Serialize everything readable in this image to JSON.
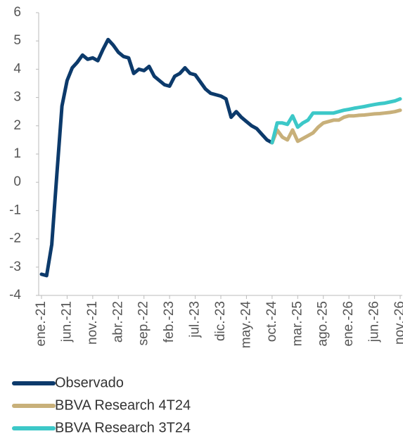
{
  "chart_data": {
    "type": "line",
    "categories": [
      "ene.-21",
      null,
      null,
      null,
      null,
      "jun.-21",
      null,
      null,
      null,
      null,
      "nov.-21",
      null,
      null,
      null,
      null,
      "abr.-22",
      null,
      null,
      null,
      null,
      "sep.-22",
      null,
      null,
      null,
      null,
      "feb.-23",
      null,
      null,
      null,
      null,
      "jul.-23",
      null,
      null,
      null,
      null,
      "dic.-23",
      null,
      null,
      null,
      null,
      "may.-24",
      null,
      null,
      null,
      null,
      "oct.-24",
      null,
      null,
      null,
      null,
      "mar.-25",
      null,
      null,
      null,
      null,
      "ago.-25",
      null,
      null,
      null,
      null,
      "ene.-26",
      null,
      null,
      null,
      null,
      "jun.-26",
      null,
      null,
      null,
      null,
      "nov.-26"
    ],
    "series": [
      {
        "name": "Observado",
        "color": "#0c3a6b",
        "values": [
          -3.25,
          -3.3,
          -2.2,
          0.3,
          2.7,
          3.6,
          4.05,
          4.25,
          4.5,
          4.35,
          4.4,
          4.3,
          4.7,
          5.05,
          4.85,
          4.6,
          4.45,
          4.4,
          3.85,
          4.0,
          3.95,
          4.1,
          3.75,
          3.6,
          3.45,
          3.4,
          3.75,
          3.85,
          4.05,
          3.85,
          3.8,
          3.55,
          3.3,
          3.15,
          3.1,
          3.05,
          2.95,
          2.3,
          2.5,
          2.3,
          2.15,
          2.0,
          1.9,
          1.7,
          1.5,
          1.4,
          null,
          null,
          null,
          null,
          null,
          null,
          null,
          null,
          null,
          null,
          null,
          null,
          null,
          null,
          null,
          null,
          null,
          null,
          null,
          null,
          null,
          null,
          null,
          null,
          null
        ]
      },
      {
        "name": "BBVA Research 4T24",
        "color": "#c8b07a",
        "values": [
          null,
          null,
          null,
          null,
          null,
          null,
          null,
          null,
          null,
          null,
          null,
          null,
          null,
          null,
          null,
          null,
          null,
          null,
          null,
          null,
          null,
          null,
          null,
          null,
          null,
          null,
          null,
          null,
          null,
          null,
          null,
          null,
          null,
          null,
          null,
          null,
          null,
          null,
          null,
          null,
          null,
          null,
          null,
          null,
          null,
          1.4,
          1.85,
          1.6,
          1.5,
          1.85,
          1.45,
          1.55,
          1.65,
          1.75,
          1.95,
          2.1,
          2.15,
          2.2,
          2.2,
          2.3,
          2.35,
          2.35,
          2.37,
          2.38,
          2.4,
          2.42,
          2.43,
          2.45,
          2.47,
          2.5,
          2.55
        ]
      },
      {
        "name": "BBVA Research 3T24",
        "color": "#3cc8c8",
        "values": [
          null,
          null,
          null,
          null,
          null,
          null,
          null,
          null,
          null,
          null,
          null,
          null,
          null,
          null,
          null,
          null,
          null,
          null,
          null,
          null,
          null,
          null,
          null,
          null,
          null,
          null,
          null,
          null,
          null,
          null,
          null,
          null,
          null,
          null,
          null,
          null,
          null,
          null,
          null,
          null,
          null,
          null,
          null,
          null,
          null,
          1.4,
          2.1,
          2.1,
          2.05,
          2.35,
          1.95,
          2.1,
          2.2,
          2.45,
          2.45,
          2.45,
          2.45,
          2.45,
          2.5,
          2.55,
          2.58,
          2.62,
          2.65,
          2.68,
          2.72,
          2.75,
          2.78,
          2.8,
          2.84,
          2.88,
          2.95
        ]
      }
    ],
    "ylim": [
      -4,
      6
    ],
    "yticks": [
      -4,
      -3,
      -2,
      -1,
      0,
      1,
      2,
      3,
      4,
      5,
      6
    ],
    "grid": false
  }
}
